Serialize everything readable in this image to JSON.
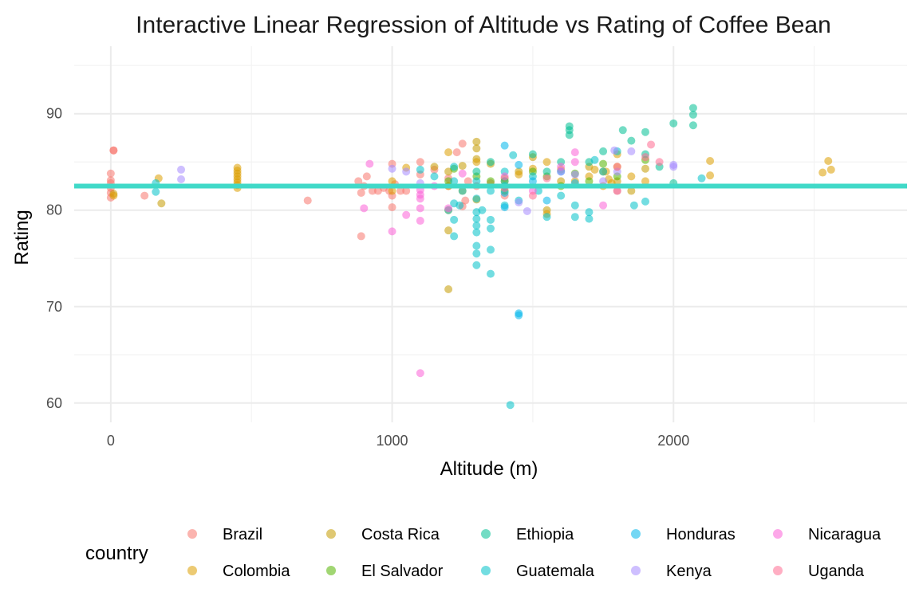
{
  "chart_data": {
    "type": "scatter",
    "title": "Interactive Linear Regression of Altitude vs Rating of Coffee Bean",
    "xlabel": "Altitude (m)",
    "ylabel": "Rating",
    "xlim": [
      -130,
      2830
    ],
    "ylim": [
      58,
      97
    ],
    "x_ticks": [
      0,
      1000,
      2000
    ],
    "y_ticks": [
      60,
      70,
      80,
      90
    ],
    "grid": true,
    "legend": {
      "title": "country",
      "placement": "bottom"
    },
    "regression_line": {
      "x": [
        -130,
        2830
      ],
      "y": [
        82.5,
        82.5
      ],
      "color": "#40d9c8"
    },
    "series": [
      {
        "name": "Brazil",
        "color": "#F8766D",
        "points": [
          [
            0,
            81.3
          ],
          [
            0,
            81.8
          ],
          [
            0,
            82.3
          ],
          [
            0,
            82.8
          ],
          [
            0,
            83.1
          ],
          [
            0,
            83.8
          ],
          [
            10,
            86.2
          ],
          [
            10,
            86.2
          ],
          [
            120,
            81.5
          ],
          [
            700,
            81.0
          ],
          [
            880,
            83.0
          ],
          [
            890,
            81.8
          ],
          [
            890,
            77.3
          ],
          [
            900,
            82.5
          ],
          [
            910,
            83.5
          ],
          [
            930,
            82.0
          ],
          [
            950,
            82.0
          ],
          [
            970,
            82.3
          ],
          [
            990,
            82.0
          ],
          [
            1000,
            84.8
          ],
          [
            1000,
            80.3
          ],
          [
            1000,
            81.5
          ],
          [
            1010,
            82.7
          ],
          [
            1030,
            82.0
          ],
          [
            1050,
            82.0
          ],
          [
            1100,
            85.0
          ],
          [
            1100,
            83.7
          ],
          [
            1150,
            84.2
          ],
          [
            1200,
            83.3
          ],
          [
            1200,
            82.5
          ],
          [
            1230,
            86.0
          ],
          [
            1250,
            86.9
          ],
          [
            1250,
            80.4
          ],
          [
            1260,
            81.0
          ],
          [
            1270,
            83.0
          ],
          [
            1300,
            82.5
          ],
          [
            1350,
            82.8
          ],
          [
            1400,
            81.5
          ]
        ]
      },
      {
        "name": "Costa Rica",
        "color": "#C49A00",
        "points": [
          [
            10,
            81.7
          ],
          [
            180,
            80.7
          ],
          [
            1150,
            84.5
          ],
          [
            1200,
            71.8
          ],
          [
            1200,
            77.9
          ],
          [
            1200,
            84.0
          ],
          [
            1250,
            84.6
          ],
          [
            1300,
            87.1
          ],
          [
            1300,
            86.4
          ],
          [
            1300,
            85.3
          ],
          [
            1300,
            81.1
          ],
          [
            1350,
            84.8
          ],
          [
            1400,
            83.3
          ],
          [
            1450,
            84.0
          ],
          [
            1500,
            85.5
          ],
          [
            1550,
            80.0
          ],
          [
            1600,
            83.0
          ],
          [
            1700,
            84.5
          ],
          [
            1750,
            84.0
          ],
          [
            1800,
            83.0
          ],
          [
            1850,
            82.0
          ],
          [
            1900,
            84.3
          ]
        ]
      },
      {
        "name": "Ethiopia",
        "color": "#53B400",
        "points": []
      },
      {
        "name": "Colombia",
        "color": "#DD9E00",
        "points": [
          [
            10,
            81.5
          ],
          [
            170,
            83.3
          ],
          [
            450,
            82.3
          ],
          [
            450,
            82.6
          ],
          [
            450,
            82.9
          ],
          [
            450,
            83.2
          ],
          [
            450,
            83.5
          ],
          [
            450,
            83.8
          ],
          [
            450,
            84.1
          ],
          [
            450,
            84.4
          ],
          [
            1000,
            82.0
          ],
          [
            1000,
            83.0
          ],
          [
            1050,
            84.4
          ],
          [
            1200,
            80.0
          ],
          [
            1200,
            82.5
          ],
          [
            1200,
            86.0
          ],
          [
            1250,
            82.0
          ],
          [
            1300,
            85.0
          ],
          [
            1400,
            83.0
          ],
          [
            1450,
            83.7
          ],
          [
            1500,
            84.3
          ],
          [
            1550,
            85.0
          ],
          [
            1550,
            79.6
          ],
          [
            1600,
            84.2
          ],
          [
            1650,
            83.0
          ],
          [
            1700,
            83.5
          ],
          [
            1720,
            84.2
          ],
          [
            1750,
            82.5
          ],
          [
            1760,
            84.0
          ],
          [
            1770,
            83.2
          ],
          [
            1780,
            82.8
          ],
          [
            1800,
            84.5
          ],
          [
            1800,
            85.8
          ],
          [
            1800,
            82.0
          ],
          [
            1850,
            83.5
          ],
          [
            1900,
            83.0
          ],
          [
            2130,
            85.1
          ],
          [
            2130,
            83.6
          ],
          [
            2530,
            83.9
          ],
          [
            2550,
            85.1
          ],
          [
            2560,
            84.2
          ]
        ]
      },
      {
        "name": "El Salvador",
        "color": "#53B400",
        "points": [
          [
            1200,
            83.0
          ],
          [
            1220,
            84.3
          ],
          [
            1300,
            83.5
          ],
          [
            1350,
            83.0
          ],
          [
            1400,
            82.0
          ],
          [
            1500,
            84.0
          ],
          [
            1550,
            83.5
          ],
          [
            1600,
            82.5
          ],
          [
            1650,
            83.8
          ],
          [
            1700,
            83.0
          ],
          [
            1750,
            84.8
          ],
          [
            1800,
            83.5
          ],
          [
            1900,
            85.2
          ]
        ]
      },
      {
        "name": "Ethiopia",
        "color": "#00C094",
        "points": [
          [
            1300,
            84.0
          ],
          [
            1350,
            85.0
          ],
          [
            1400,
            83.0
          ],
          [
            1500,
            85.8
          ],
          [
            1550,
            84.0
          ],
          [
            1600,
            85.0
          ],
          [
            1630,
            88.7
          ],
          [
            1630,
            88.3
          ],
          [
            1630,
            87.8
          ],
          [
            1700,
            85.0
          ],
          [
            1750,
            86.1
          ],
          [
            1820,
            88.3
          ],
          [
            1850,
            87.2
          ],
          [
            1900,
            88.1
          ],
          [
            1900,
            85.8
          ],
          [
            1950,
            84.5
          ],
          [
            2000,
            89.0
          ],
          [
            2000,
            82.8
          ],
          [
            2070,
            90.6
          ],
          [
            2070,
            89.9
          ],
          [
            2070,
            88.8
          ]
        ]
      },
      {
        "name": "Guatemala",
        "color": "#00C1C9",
        "points": [
          [
            160,
            82.8
          ],
          [
            160,
            81.9
          ],
          [
            1100,
            84.2
          ],
          [
            1150,
            83.5
          ],
          [
            1200,
            80.0
          ],
          [
            1220,
            77.3
          ],
          [
            1220,
            79.0
          ],
          [
            1220,
            80.7
          ],
          [
            1220,
            83.0
          ],
          [
            1220,
            84.5
          ],
          [
            1240,
            80.5
          ],
          [
            1250,
            82.0
          ],
          [
            1300,
            74.3
          ],
          [
            1300,
            75.5
          ],
          [
            1300,
            76.3
          ],
          [
            1300,
            77.7
          ],
          [
            1300,
            78.4
          ],
          [
            1300,
            79.1
          ],
          [
            1300,
            79.8
          ],
          [
            1300,
            81.2
          ],
          [
            1300,
            83.0
          ],
          [
            1320,
            80.0
          ],
          [
            1350,
            73.4
          ],
          [
            1350,
            75.9
          ],
          [
            1350,
            78.1
          ],
          [
            1350,
            79.0
          ],
          [
            1350,
            82.0
          ],
          [
            1400,
            80.5
          ],
          [
            1400,
            82.5
          ],
          [
            1400,
            84.0
          ],
          [
            1420,
            59.8
          ],
          [
            1430,
            85.7
          ],
          [
            1450,
            81.0
          ],
          [
            1500,
            83.5
          ],
          [
            1520,
            82.0
          ],
          [
            1550,
            79.3
          ],
          [
            1600,
            81.5
          ],
          [
            1650,
            79.3
          ],
          [
            1650,
            80.5
          ],
          [
            1700,
            79.1
          ],
          [
            1700,
            79.8
          ],
          [
            1720,
            85.2
          ],
          [
            1750,
            84.0
          ],
          [
            1800,
            86.1
          ],
          [
            1860,
            80.5
          ],
          [
            1900,
            80.9
          ],
          [
            2100,
            83.3
          ]
        ]
      },
      {
        "name": "Honduras",
        "color": "#00B6EB",
        "points": [
          [
            1400,
            80.3
          ],
          [
            1400,
            81.8
          ],
          [
            1400,
            86.7
          ],
          [
            1450,
            69.3
          ],
          [
            1450,
            69.1
          ],
          [
            1450,
            84.7
          ],
          [
            1500,
            83.0
          ],
          [
            1550,
            81.0
          ],
          [
            1600,
            84.0
          ],
          [
            1650,
            82.8
          ]
        ]
      },
      {
        "name": "Kenya",
        "color": "#A58AFF",
        "points": [
          [
            250,
            84.2
          ],
          [
            250,
            83.2
          ],
          [
            1000,
            84.3
          ],
          [
            1050,
            84.0
          ],
          [
            1100,
            82.8
          ],
          [
            1450,
            80.8
          ],
          [
            1480,
            79.9
          ],
          [
            1600,
            84.0
          ],
          [
            1650,
            83.7
          ],
          [
            1750,
            83.0
          ],
          [
            1790,
            86.2
          ],
          [
            1800,
            84.0
          ],
          [
            1850,
            86.1
          ],
          [
            2000,
            84.5
          ],
          [
            2000,
            84.7
          ]
        ]
      },
      {
        "name": "Nicaragua",
        "color": "#FB61D7",
        "points": [
          [
            900,
            80.2
          ],
          [
            920,
            84.8
          ],
          [
            1000,
            77.8
          ],
          [
            1050,
            79.5
          ],
          [
            1100,
            78.9
          ],
          [
            1100,
            80.2
          ],
          [
            1100,
            81.2
          ],
          [
            1100,
            81.6
          ],
          [
            1100,
            82.1
          ],
          [
            1100,
            63.1
          ],
          [
            1150,
            82.5
          ],
          [
            1200,
            80.2
          ],
          [
            1250,
            83.8
          ],
          [
            1400,
            83.5
          ],
          [
            1500,
            82.0
          ],
          [
            1600,
            84.5
          ],
          [
            1650,
            86.0
          ],
          [
            1650,
            85.0
          ],
          [
            1750,
            80.5
          ],
          [
            1800,
            82.0
          ]
        ]
      },
      {
        "name": "Uganda",
        "color": "#FF6C91",
        "points": [
          [
            1400,
            82.3
          ],
          [
            1500,
            81.5
          ],
          [
            1550,
            83.3
          ],
          [
            1800,
            84.5
          ],
          [
            1900,
            85.5
          ],
          [
            1920,
            86.8
          ],
          [
            1950,
            85.0
          ]
        ]
      }
    ],
    "legend_entries": [
      {
        "name": "Brazil",
        "color": "#F8766D"
      },
      {
        "name": "Colombia",
        "color": "#DD9E00"
      },
      {
        "name": "Costa Rica",
        "color": "#C49A00"
      },
      {
        "name": "El Salvador",
        "color": "#53B400"
      },
      {
        "name": "Ethiopia",
        "color": "#00C094"
      },
      {
        "name": "Guatemala",
        "color": "#00C1C9"
      },
      {
        "name": "Honduras",
        "color": "#00B6EB"
      },
      {
        "name": "Kenya",
        "color": "#A58AFF"
      },
      {
        "name": "Nicaragua",
        "color": "#FB61D7"
      },
      {
        "name": "Uganda",
        "color": "#FF6C91"
      }
    ]
  }
}
